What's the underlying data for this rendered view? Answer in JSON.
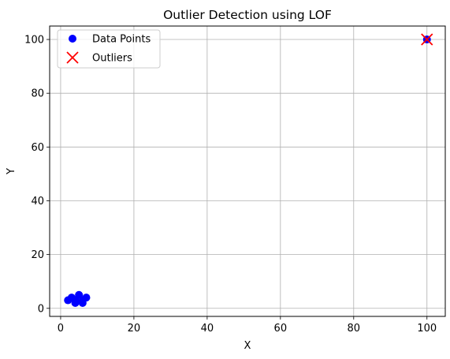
{
  "chart_data": {
    "type": "scatter",
    "title": "Outlier Detection using LOF",
    "xlabel": "X",
    "ylabel": "Y",
    "xlim": [
      -3,
      105
    ],
    "ylim": [
      -3,
      105
    ],
    "xticks": [
      0,
      20,
      40,
      60,
      80,
      100
    ],
    "yticks": [
      0,
      20,
      40,
      60,
      80,
      100
    ],
    "grid": true,
    "legend_position": "upper-left",
    "series": [
      {
        "name": "Data Points",
        "marker": "circle",
        "color": "#0000ff",
        "points": [
          {
            "x": 2,
            "y": 3
          },
          {
            "x": 3,
            "y": 4
          },
          {
            "x": 4,
            "y": 2
          },
          {
            "x": 5,
            "y": 5
          },
          {
            "x": 6,
            "y": 3
          },
          {
            "x": 7,
            "y": 4
          },
          {
            "x": 4,
            "y": 3
          },
          {
            "x": 6,
            "y": 2
          },
          {
            "x": 100,
            "y": 100
          }
        ]
      },
      {
        "name": "Outliers",
        "marker": "x",
        "color": "#ff0000",
        "points": [
          {
            "x": 100,
            "y": 100
          }
        ]
      }
    ]
  }
}
